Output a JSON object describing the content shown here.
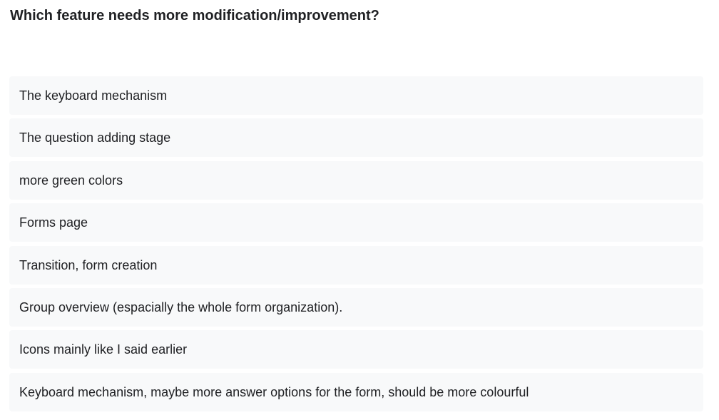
{
  "question": {
    "title": "Which feature needs more modification/improvement?"
  },
  "responses": [
    "The keyboard mechanism",
    "The question adding stage",
    "more green colors",
    "Forms page",
    "Transition, form creation",
    "Group overview (espacially the whole form organization).",
    "Icons mainly like I said earlier",
    "Keyboard mechanism, maybe more answer options for the form, should be more colourful"
  ],
  "colors": {
    "response_background": "#f8f9fa",
    "text": "#202124"
  }
}
